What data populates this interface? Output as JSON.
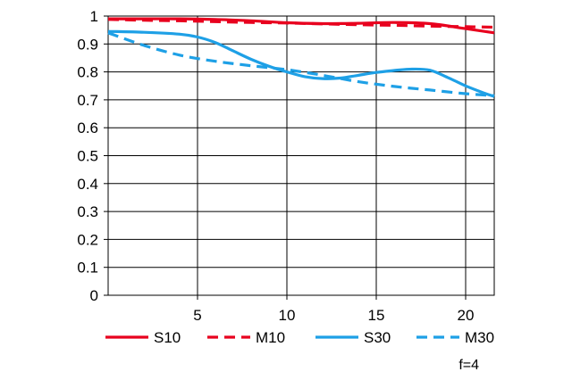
{
  "chart_data": {
    "type": "line",
    "title": "",
    "xlabel": "",
    "ylabel": "",
    "xlim": [
      0,
      21.6
    ],
    "ylim": [
      0,
      1
    ],
    "x_ticks": [
      5,
      10,
      15,
      20
    ],
    "y_ticks": [
      0,
      0.1,
      0.2,
      0.3,
      0.4,
      0.5,
      0.6,
      0.7,
      0.8,
      0.9,
      1
    ],
    "y_tick_labels": [
      "0",
      "0.1",
      "0.2",
      "0.3",
      "0.4",
      "0.5",
      "0.6",
      "0.7",
      "0.8",
      "0.9",
      "1"
    ],
    "grid": true,
    "legend_position": "bottom",
    "series": [
      {
        "name": "S10",
        "color": "#e8001e",
        "style": "solid",
        "x": [
          0,
          2,
          4,
          6,
          8,
          10,
          12,
          14,
          16,
          18,
          20,
          21.6
        ],
        "y": [
          0.99,
          0.99,
          0.99,
          0.988,
          0.983,
          0.976,
          0.973,
          0.974,
          0.977,
          0.973,
          0.955,
          0.94
        ]
      },
      {
        "name": "M10",
        "color": "#e8001e",
        "style": "dashed",
        "x": [
          0,
          2,
          4,
          6,
          8,
          10,
          12,
          14,
          16,
          18,
          20,
          21.6
        ],
        "y": [
          0.988,
          0.985,
          0.983,
          0.98,
          0.977,
          0.975,
          0.972,
          0.969,
          0.967,
          0.964,
          0.962,
          0.96
        ]
      },
      {
        "name": "S30",
        "color": "#1ea0e6",
        "style": "solid",
        "x": [
          0,
          2,
          4,
          5,
          6,
          7,
          8,
          9,
          10,
          11,
          12,
          13,
          14,
          15,
          16,
          17,
          18,
          19,
          20,
          21,
          21.6
        ],
        "y": [
          0.945,
          0.942,
          0.935,
          0.925,
          0.905,
          0.875,
          0.845,
          0.82,
          0.8,
          0.783,
          0.776,
          0.778,
          0.788,
          0.798,
          0.805,
          0.81,
          0.806,
          0.78,
          0.75,
          0.725,
          0.712
        ]
      },
      {
        "name": "M30",
        "color": "#1ea0e6",
        "style": "dashed",
        "x": [
          0,
          2,
          4,
          6,
          8,
          10,
          12,
          14,
          16,
          18,
          20,
          21.6
        ],
        "y": [
          0.94,
          0.895,
          0.86,
          0.838,
          0.822,
          0.808,
          0.788,
          0.765,
          0.748,
          0.735,
          0.722,
          0.715
        ]
      }
    ]
  },
  "annotation": "f=4"
}
